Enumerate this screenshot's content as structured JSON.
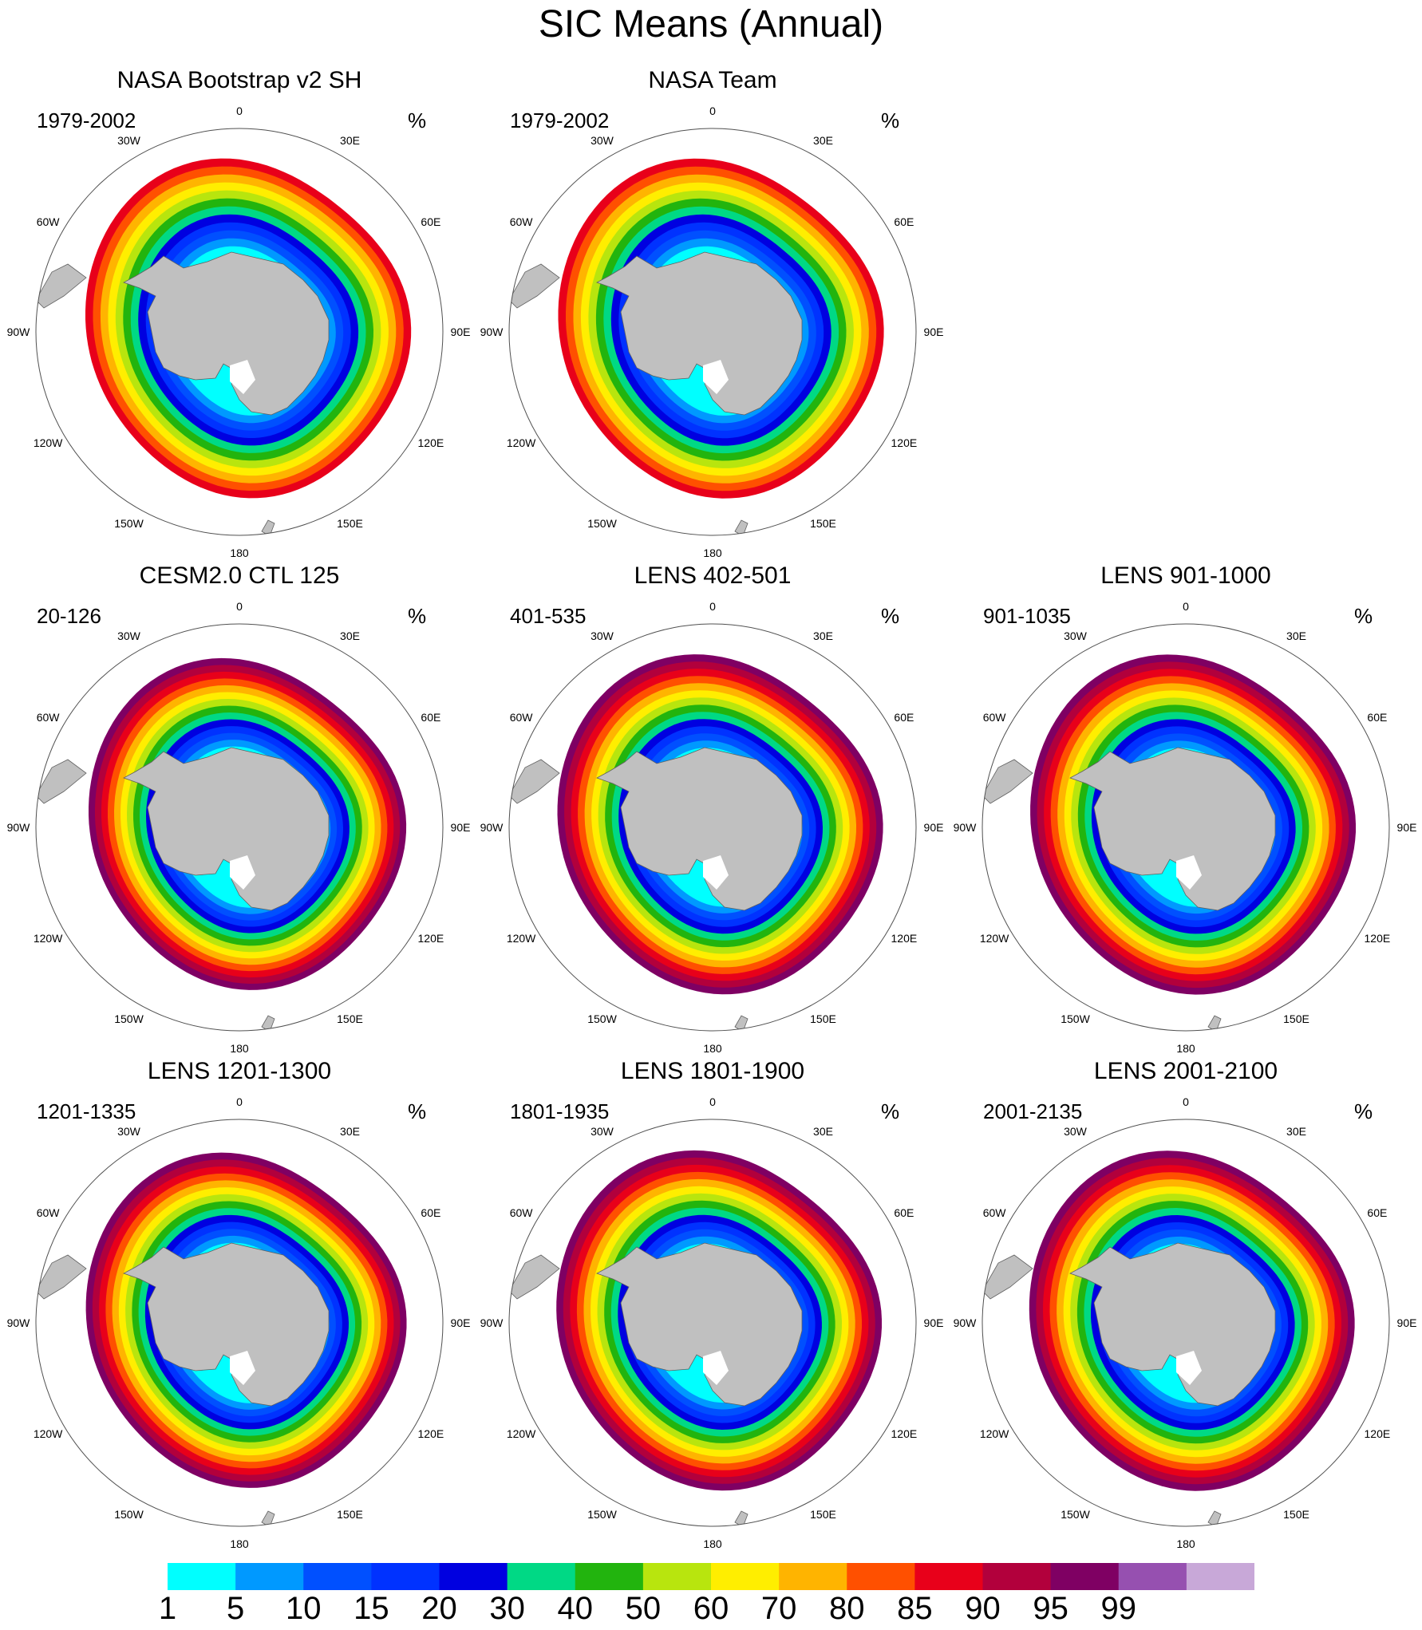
{
  "title": "SIC Means (Annual)",
  "lon_labels": [
    "0",
    "30E",
    "60E",
    "90E",
    "120E",
    "150E",
    "180",
    "150W",
    "120W",
    "90W",
    "60W",
    "30W"
  ],
  "units": "%",
  "panels": [
    {
      "title": "NASA Bootstrap v2 SH",
      "period": "1979-2002",
      "style": "bootstrap"
    },
    {
      "title": "NASA Team",
      "period": "1979-2002",
      "style": "team"
    },
    {
      "title": "CESM2.0 CTL 125",
      "period": "20-126",
      "style": "ctl"
    },
    {
      "title": "LENS 402-501",
      "period": "401-535",
      "style": "lens"
    },
    {
      "title": "LENS 901-1000",
      "period": "901-1035",
      "style": "lens"
    },
    {
      "title": "LENS 1201-1300",
      "period": "1201-1335",
      "style": "lens2"
    },
    {
      "title": "LENS 1801-1900",
      "period": "1801-1935",
      "style": "lens"
    },
    {
      "title": "LENS 2001-2100",
      "period": "2001-2135",
      "style": "lens"
    }
  ],
  "colorbar": {
    "labels": [
      "1",
      "5",
      "10",
      "15",
      "20",
      "30",
      "40",
      "50",
      "60",
      "70",
      "80",
      "85",
      "90",
      "95",
      "99"
    ],
    "colors": [
      "#00ffff",
      "#0099ff",
      "#0050ff",
      "#0032ff",
      "#0000e0",
      "#00d985",
      "#22b40e",
      "#b8e50e",
      "#ffee00",
      "#ffb400",
      "#ff5000",
      "#e8001a",
      "#b2003c",
      "#7f0063",
      "#9650b0",
      "#c8a8d8"
    ]
  },
  "colors": {
    "land": "#c0c0c0",
    "coast": "#606060",
    "rim": "#505050"
  }
}
